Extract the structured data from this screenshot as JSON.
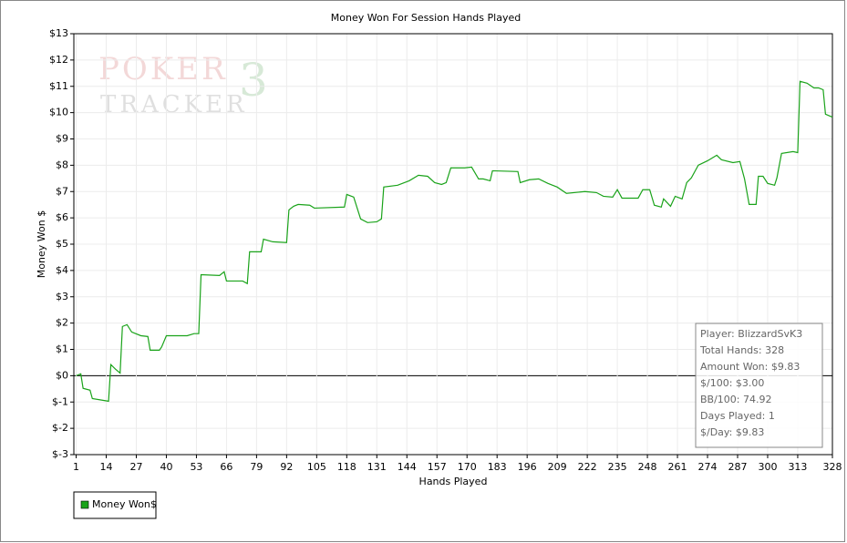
{
  "chart_data": {
    "type": "line",
    "title": "Money Won For Session Hands Played",
    "x_label": "Hands Played",
    "y_label": "Money Won $",
    "watermark": {
      "line1": "POKER",
      "line2": "TRACKER",
      "mark": "3"
    },
    "xlim": [
      0,
      328
    ],
    "ylim": [
      -3,
      13
    ],
    "xticks": [
      1,
      14,
      27,
      40,
      53,
      66,
      79,
      92,
      105,
      118,
      131,
      144,
      157,
      170,
      183,
      196,
      209,
      222,
      235,
      248,
      261,
      274,
      287,
      300,
      313,
      328
    ],
    "yticks": [
      {
        "value": -3,
        "label": "$-3"
      },
      {
        "value": -2,
        "label": "$-2"
      },
      {
        "value": -1,
        "label": "$-1"
      },
      {
        "value": 0,
        "label": "$0"
      },
      {
        "value": 1,
        "label": "$1"
      },
      {
        "value": 2,
        "label": "$2"
      },
      {
        "value": 3,
        "label": "$3"
      },
      {
        "value": 4,
        "label": "$4"
      },
      {
        "value": 5,
        "label": "$5"
      },
      {
        "value": 6,
        "label": "$6"
      },
      {
        "value": 7,
        "label": "$7"
      },
      {
        "value": 8,
        "label": "$8"
      },
      {
        "value": 9,
        "label": "$9"
      },
      {
        "value": 10,
        "label": "$10"
      },
      {
        "value": 11,
        "label": "$11"
      },
      {
        "value": 12,
        "label": "$12"
      },
      {
        "value": 13,
        "label": "$13"
      }
    ],
    "grid": true,
    "legend": "bottom-left",
    "x": [
      1,
      3,
      4,
      7,
      8,
      15,
      16,
      18,
      20,
      21,
      23,
      25,
      29,
      32,
      33,
      37,
      38,
      40,
      49,
      52,
      54,
      55,
      63,
      65,
      66,
      73,
      75,
      76,
      81,
      82,
      86,
      92,
      93,
      95,
      97,
      102,
      104,
      117,
      118,
      121,
      124,
      127,
      131,
      133,
      134,
      140,
      145,
      149,
      153,
      156,
      159,
      161,
      163,
      169,
      172,
      175,
      177,
      180,
      181,
      192,
      193,
      197,
      201,
      205,
      209,
      213,
      221,
      226,
      229,
      233,
      235,
      237,
      244,
      246,
      249,
      251,
      254,
      255,
      258,
      260,
      263,
      265,
      267,
      270,
      274,
      278,
      280,
      285,
      288,
      290,
      292,
      295,
      296,
      298,
      300,
      303,
      304,
      306,
      311,
      313,
      314,
      317,
      320,
      322,
      324,
      325,
      328
    ],
    "series": [
      {
        "name": "Money Won$",
        "color": "#1aa31a",
        "values": [
          0.0,
          0.07,
          -0.48,
          -0.55,
          -0.87,
          -0.97,
          0.42,
          0.25,
          0.1,
          1.87,
          1.94,
          1.66,
          1.52,
          1.49,
          0.97,
          0.97,
          1.1,
          1.52,
          1.52,
          1.6,
          1.6,
          3.84,
          3.81,
          3.95,
          3.6,
          3.6,
          3.5,
          4.71,
          4.71,
          5.19,
          5.09,
          5.06,
          6.3,
          6.44,
          6.51,
          6.48,
          6.37,
          6.41,
          6.89,
          6.79,
          5.96,
          5.82,
          5.85,
          5.96,
          7.17,
          7.24,
          7.41,
          7.62,
          7.58,
          7.34,
          7.27,
          7.34,
          7.9,
          7.9,
          7.93,
          7.48,
          7.48,
          7.41,
          7.79,
          7.76,
          7.34,
          7.45,
          7.48,
          7.31,
          7.17,
          6.93,
          7.0,
          6.96,
          6.82,
          6.79,
          7.07,
          6.75,
          6.75,
          7.07,
          7.07,
          6.48,
          6.41,
          6.72,
          6.44,
          6.82,
          6.72,
          7.34,
          7.52,
          8.0,
          8.17,
          8.38,
          8.21,
          8.1,
          8.14,
          7.48,
          6.51,
          6.51,
          7.58,
          7.58,
          7.31,
          7.24,
          7.52,
          8.45,
          8.52,
          8.48,
          11.19,
          11.12,
          10.94,
          10.94,
          10.87,
          9.94,
          9.83
        ]
      }
    ],
    "stats": [
      "Player: BlizzardSvK3",
      "Total Hands: 328",
      "Amount Won: $9.83",
      "$/100: $3.00",
      "BB/100: 74.92",
      "Days Played: 1",
      "$/Day: $9.83"
    ]
  }
}
